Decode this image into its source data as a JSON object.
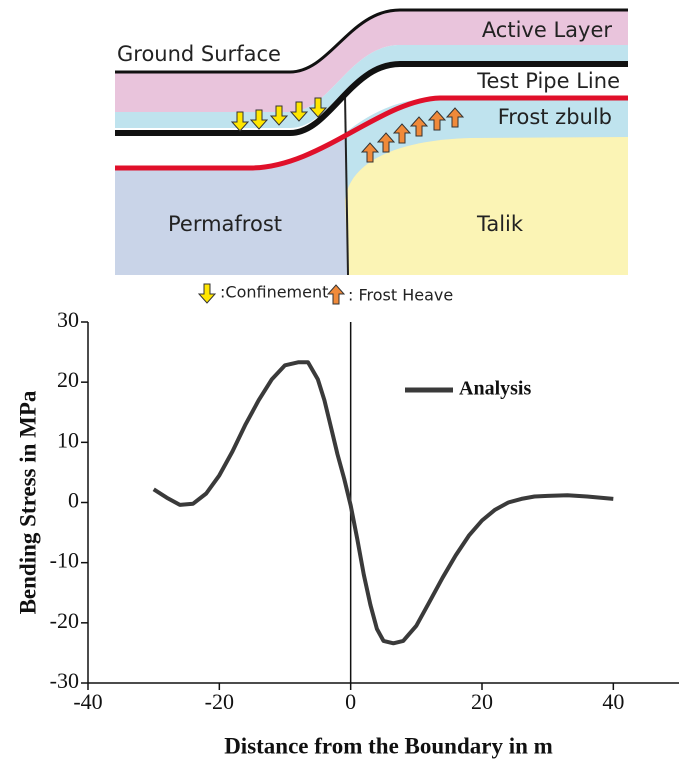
{
  "diagram": {
    "labels": {
      "ground": "Ground Surface",
      "active": "Active Layer",
      "pipe": "Test Pipe Line",
      "bulb": "Frost zbulb",
      "permafrost": "Permafrost",
      "talik": "Talik",
      "confinement": ":Confinement",
      "heave": ": Frost Heave"
    }
  },
  "chart_data": {
    "type": "line",
    "x_label": "Distance from the Boundary in m",
    "y_label": "Bending Stress in MPa",
    "xlim": [
      -40,
      50
    ],
    "ylim": [
      -30,
      30
    ],
    "xticks": [
      -40,
      -20,
      0,
      20,
      40
    ],
    "yticks": [
      -30,
      -20,
      -10,
      0,
      10,
      20,
      30
    ],
    "boundary_x": 0,
    "legend": "upper right",
    "series": [
      {
        "name": "Analysis",
        "color": "#3a3a3a",
        "x": [
          -30,
          -28,
          -26,
          -24,
          -22,
          -20,
          -18,
          -16,
          -14,
          -12,
          -10,
          -8,
          -6.5,
          -5,
          -4,
          -3,
          -2,
          -1,
          0,
          1,
          2,
          3,
          4,
          5,
          6.5,
          8,
          10,
          12,
          14,
          16,
          18,
          20,
          22,
          24,
          26,
          28,
          30,
          33,
          36,
          40
        ],
        "values": [
          2.2,
          0.8,
          -0.4,
          -0.2,
          1.5,
          4.5,
          8.5,
          13,
          17,
          20.5,
          22.8,
          23.3,
          23.3,
          20.5,
          17,
          12.5,
          8,
          4,
          -0.5,
          -6,
          -12,
          -17,
          -21,
          -23,
          -23.4,
          -23,
          -20.5,
          -16.5,
          -12.5,
          -8.8,
          -5.5,
          -3,
          -1.2,
          0,
          0.6,
          1,
          1.1,
          1.2,
          1,
          0.6
        ]
      }
    ]
  }
}
